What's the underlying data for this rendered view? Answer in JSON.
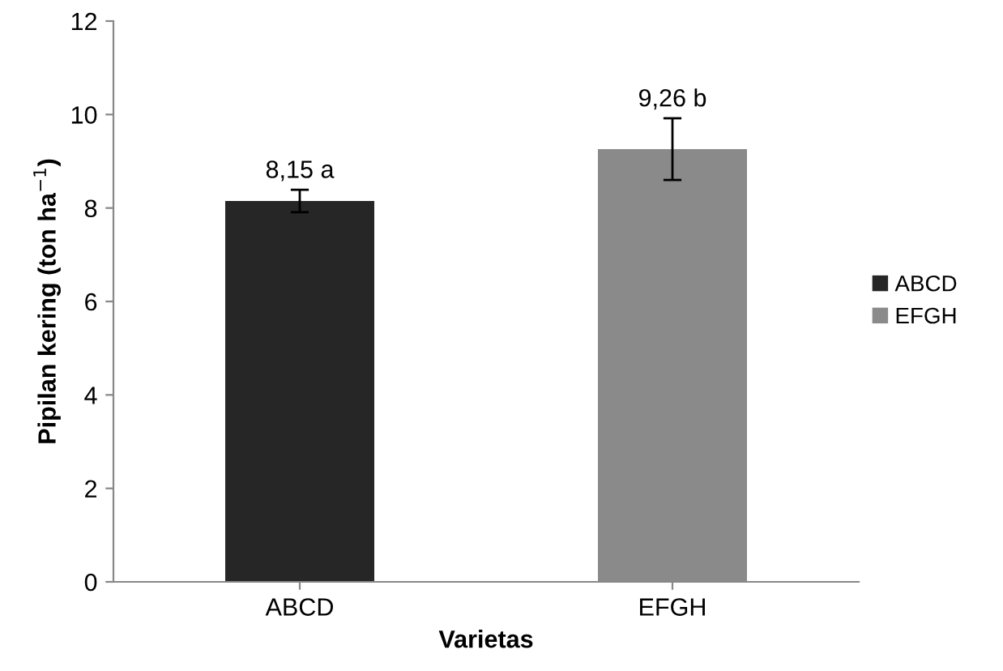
{
  "chart_data": {
    "type": "bar",
    "xlabel": "Varietas",
    "ylabel": "Pipilan kering (ton ha$^{−1}$)",
    "categories": [
      "ABCD",
      "EFGH"
    ],
    "series": [
      {
        "name": "ABCD",
        "color": "#262626",
        "values": [
          8.15,
          null
        ],
        "errors": [
          0.24,
          null
        ],
        "value_labels": [
          "8,15 a",
          null
        ]
      },
      {
        "name": "EFGH",
        "color": "#8a8a8a",
        "values": [
          null,
          9.26
        ],
        "errors": [
          null,
          0.66
        ],
        "value_labels": [
          null,
          "9,26 b"
        ]
      }
    ],
    "ylim": [
      0,
      12
    ],
    "yticks": [
      0,
      2,
      4,
      6,
      8,
      10,
      12
    ],
    "grid": false,
    "legend": "right"
  }
}
